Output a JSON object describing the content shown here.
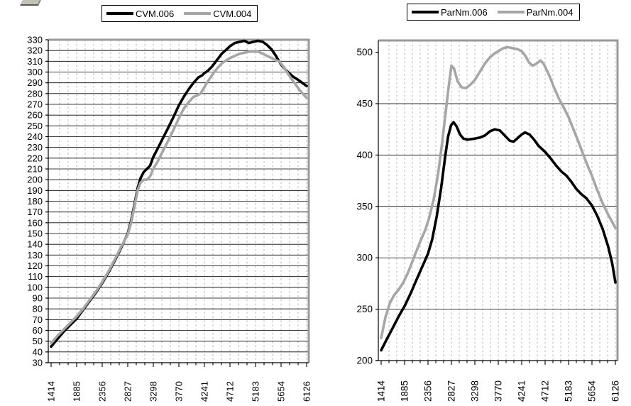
{
  "page": {
    "background": "#ffffff"
  },
  "decorations": {
    "top_left_partial_icon": "cropped-toolbar-icon"
  },
  "chart_data": [
    {
      "type": "line",
      "title": "",
      "xlabel": "",
      "ylabel": "",
      "legend_position": "top",
      "grid": {
        "horizontal": "solid",
        "vertical": "dashed-minor"
      },
      "x_ticks": [
        1414,
        1885,
        2356,
        2827,
        3298,
        3770,
        4241,
        4712,
        5183,
        5654,
        6126
      ],
      "ylim": [
        30,
        330
      ],
      "ytick_step": 10,
      "series": [
        {
          "name": "CVM.006",
          "color": "#000000",
          "points": [
            [
              1414,
              45
            ],
            [
              1530,
              52
            ],
            [
              1650,
              59
            ],
            [
              1767,
              65
            ],
            [
              1885,
              71
            ],
            [
              2003,
              79
            ],
            [
              2120,
              87
            ],
            [
              2238,
              95
            ],
            [
              2356,
              104
            ],
            [
              2474,
              114
            ],
            [
              2591,
              125
            ],
            [
              2709,
              137
            ],
            [
              2827,
              150
            ],
            [
              2890,
              162
            ],
            [
              2950,
              177
            ],
            [
              3010,
              192
            ],
            [
              3060,
              201
            ],
            [
              3120,
              207
            ],
            [
              3180,
              210
            ],
            [
              3240,
              213
            ],
            [
              3298,
              221
            ],
            [
              3380,
              229
            ],
            [
              3470,
              238
            ],
            [
              3560,
              247
            ],
            [
              3650,
              256
            ],
            [
              3770,
              269
            ],
            [
              3860,
              277
            ],
            [
              3950,
              284
            ],
            [
              4040,
              290
            ],
            [
              4130,
              295
            ],
            [
              4200,
              297
            ],
            [
              4241,
              299
            ],
            [
              4300,
              301
            ],
            [
              4380,
              305
            ],
            [
              4470,
              311
            ],
            [
              4560,
              317
            ],
            [
              4650,
              321
            ],
            [
              4712,
              324
            ],
            [
              4800,
              327
            ],
            [
              4890,
              328
            ],
            [
              4980,
              329
            ],
            [
              5060,
              327
            ],
            [
              5140,
              328
            ],
            [
              5230,
              329
            ],
            [
              5320,
              328
            ],
            [
              5400,
              325
            ],
            [
              5480,
              321
            ],
            [
              5560,
              315
            ],
            [
              5654,
              307
            ],
            [
              5760,
              301
            ],
            [
              5870,
              296
            ],
            [
              5990,
              292
            ],
            [
              6126,
              287
            ]
          ]
        },
        {
          "name": "CVM.004",
          "color": "#a6a6a6",
          "points": [
            [
              1414,
              48
            ],
            [
              1530,
              55
            ],
            [
              1650,
              61
            ],
            [
              1767,
              67
            ],
            [
              1885,
              73
            ],
            [
              2003,
              80
            ],
            [
              2120,
              88
            ],
            [
              2238,
              96
            ],
            [
              2356,
              105
            ],
            [
              2474,
              115
            ],
            [
              2591,
              126
            ],
            [
              2709,
              138
            ],
            [
              2827,
              149
            ],
            [
              2890,
              160
            ],
            [
              2950,
              175
            ],
            [
              3010,
              190
            ],
            [
              3060,
              197
            ],
            [
              3120,
              200
            ],
            [
              3180,
              200
            ],
            [
              3240,
              203
            ],
            [
              3298,
              210
            ],
            [
              3380,
              217
            ],
            [
              3470,
              226
            ],
            [
              3560,
              235
            ],
            [
              3650,
              244
            ],
            [
              3770,
              257
            ],
            [
              3860,
              266
            ],
            [
              3950,
              272
            ],
            [
              4040,
              277
            ],
            [
              4100,
              278
            ],
            [
              4170,
              280
            ],
            [
              4241,
              286
            ],
            [
              4300,
              291
            ],
            [
              4380,
              297
            ],
            [
              4470,
              303
            ],
            [
              4560,
              308
            ],
            [
              4650,
              311
            ],
            [
              4712,
              313
            ],
            [
              4800,
              315
            ],
            [
              4890,
              317
            ],
            [
              4980,
              318
            ],
            [
              5060,
              319
            ],
            [
              5140,
              319
            ],
            [
              5230,
              319
            ],
            [
              5320,
              317
            ],
            [
              5400,
              315
            ],
            [
              5480,
              313
            ],
            [
              5560,
              311
            ],
            [
              5620,
              310
            ],
            [
              5700,
              305
            ],
            [
              5800,
              297
            ],
            [
              5900,
              290
            ],
            [
              6000,
              283
            ],
            [
              6126,
              276
            ]
          ]
        }
      ]
    },
    {
      "type": "line",
      "title": "",
      "xlabel": "",
      "ylabel": "",
      "legend_position": "top",
      "grid": {
        "horizontal": "solid",
        "vertical": "dashed-minor"
      },
      "x_ticks": [
        1414,
        1885,
        2356,
        2827,
        3298,
        3770,
        4241,
        4712,
        5183,
        5654,
        6126
      ],
      "ylim": [
        200,
        500
      ],
      "ytick_step": 50,
      "series": [
        {
          "name": "ParNm.006",
          "color": "#000000",
          "points": [
            [
              1414,
              210
            ],
            [
              1530,
              221
            ],
            [
              1650,
              232
            ],
            [
              1767,
              243
            ],
            [
              1885,
              253
            ],
            [
              2003,
              265
            ],
            [
              2120,
              278
            ],
            [
              2238,
              291
            ],
            [
              2356,
              304
            ],
            [
              2440,
              318
            ],
            [
              2530,
              340
            ],
            [
              2620,
              368
            ],
            [
              2700,
              398
            ],
            [
              2760,
              418
            ],
            [
              2820,
              429
            ],
            [
              2870,
              432
            ],
            [
              2930,
              428
            ],
            [
              3000,
              420
            ],
            [
              3070,
              416
            ],
            [
              3150,
              415
            ],
            [
              3298,
              416
            ],
            [
              3400,
              417
            ],
            [
              3500,
              419
            ],
            [
              3600,
              423
            ],
            [
              3700,
              425
            ],
            [
              3800,
              424
            ],
            [
              3900,
              419
            ],
            [
              4000,
              414
            ],
            [
              4080,
              413
            ],
            [
              4170,
              417
            ],
            [
              4241,
              420
            ],
            [
              4310,
              422
            ],
            [
              4400,
              420
            ],
            [
              4490,
              415
            ],
            [
              4580,
              409
            ],
            [
              4712,
              403
            ],
            [
              4820,
              397
            ],
            [
              4930,
              390
            ],
            [
              5040,
              384
            ],
            [
              5140,
              380
            ],
            [
              5240,
              374
            ],
            [
              5340,
              367
            ],
            [
              5440,
              362
            ],
            [
              5540,
              358
            ],
            [
              5654,
              351
            ],
            [
              5760,
              341
            ],
            [
              5870,
              328
            ],
            [
              5980,
              311
            ],
            [
              6060,
              295
            ],
            [
              6126,
              276
            ]
          ]
        },
        {
          "name": "ParNm.004",
          "color": "#a6a6a6",
          "points": [
            [
              1414,
              222
            ],
            [
              1500,
              242
            ],
            [
              1590,
              256
            ],
            [
              1680,
              264
            ],
            [
              1767,
              269
            ],
            [
              1860,
              276
            ],
            [
              1950,
              285
            ],
            [
              2040,
              296
            ],
            [
              2120,
              306
            ],
            [
              2210,
              317
            ],
            [
              2300,
              327
            ],
            [
              2380,
              339
            ],
            [
              2470,
              357
            ],
            [
              2560,
              382
            ],
            [
              2640,
              412
            ],
            [
              2710,
              441
            ],
            [
              2770,
              466
            ],
            [
              2827,
              487
            ],
            [
              2880,
              484
            ],
            [
              2950,
              472
            ],
            [
              3030,
              466
            ],
            [
              3120,
              465
            ],
            [
              3220,
              469
            ],
            [
              3298,
              473
            ],
            [
              3400,
              481
            ],
            [
              3500,
              489
            ],
            [
              3600,
              495
            ],
            [
              3700,
              499
            ],
            [
              3770,
              501
            ],
            [
              3870,
              504
            ],
            [
              3960,
              505
            ],
            [
              4060,
              504
            ],
            [
              4160,
              503
            ],
            [
              4241,
              501
            ],
            [
              4310,
              497
            ],
            [
              4390,
              490
            ],
            [
              4460,
              487
            ],
            [
              4540,
              489
            ],
            [
              4620,
              492
            ],
            [
              4680,
              489
            ],
            [
              4712,
              486
            ],
            [
              4800,
              477
            ],
            [
              4890,
              466
            ],
            [
              4990,
              455
            ],
            [
              5090,
              446
            ],
            [
              5183,
              437
            ],
            [
              5290,
              424
            ],
            [
              5390,
              412
            ],
            [
              5490,
              399
            ],
            [
              5590,
              387
            ],
            [
              5654,
              380
            ],
            [
              5760,
              366
            ],
            [
              5870,
              353
            ],
            [
              5980,
              342
            ],
            [
              6060,
              335
            ],
            [
              6126,
              329
            ]
          ]
        }
      ]
    }
  ]
}
